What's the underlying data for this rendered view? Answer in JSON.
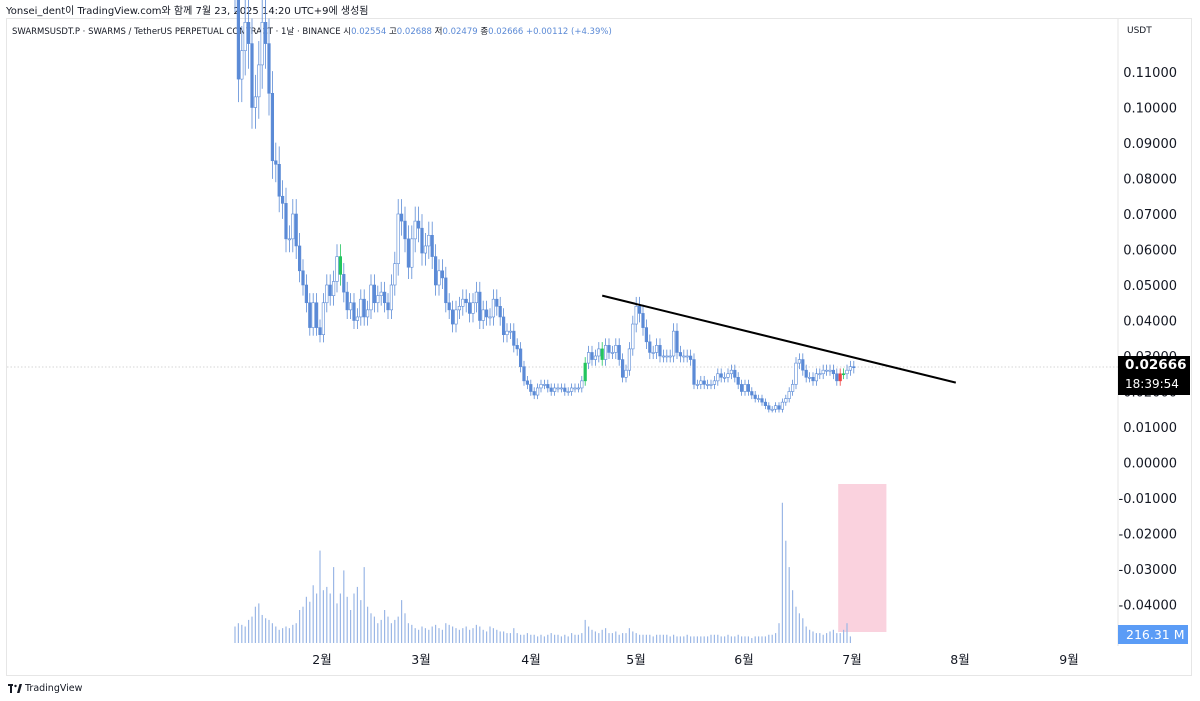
{
  "header": {
    "author_line": "Yonsei_dent이 TradingView.com와 함께 7월 23, 2025 14:20 UTC+9에 생성됨",
    "symbol_text": "SWARMSUSDT.P · SWARMS / TetherUS PERPETUAL CONTRACT · 1날 · BINANCE",
    "open_label": "시",
    "open_value": "0.02554",
    "high_label": "고",
    "high_value": "0.02688",
    "low_label": "저",
    "low_value": "0.02479",
    "close_label": "종",
    "close_value": "0.02666",
    "change_text": "+0.00112 (+4.39%)"
  },
  "axis": {
    "currency": "USDT",
    "price_badge": "0.02666",
    "countdown": "18:39:54",
    "volume_badge": "216.31 M"
  },
  "brand": {
    "name": "TradingView"
  },
  "colors": {
    "candle": "#5b8ad6",
    "candle_green": "#22c55e",
    "candle_red": "#ef4444",
    "volume": "#9bb7e6",
    "trendline": "#000000",
    "highlight": "#f9c7d6",
    "price_badge_bg": "#000000",
    "volume_badge_bg": "#5b9cf6"
  },
  "chart_data": {
    "type": "candlestick",
    "symbol": "SWARMSUSDT.P",
    "interval": "1날",
    "exchange": "BINANCE",
    "y_ticks": [
      "0.11000",
      "0.10000",
      "0.09000",
      "0.08000",
      "0.07000",
      "0.06000",
      "0.05000",
      "0.04000",
      "0.03000",
      "0.02000",
      "0.01000",
      "0.00000",
      "-0.01000",
      "-0.02000",
      "-0.03000",
      "-0.04000"
    ],
    "y_tick_values": [
      0.11,
      0.1,
      0.09,
      0.08,
      0.07,
      0.06,
      0.05,
      0.04,
      0.03,
      0.02,
      0.01,
      0.0,
      -0.01,
      -0.02,
      -0.03,
      -0.04
    ],
    "x_tick_labels": [
      "2월",
      "3월",
      "4월",
      "5월",
      "6월",
      "7월",
      "8월",
      "9월"
    ],
    "last_price": 0.02666,
    "last_price_bar_index": 212,
    "volume_last": "216.31 M",
    "closes": [
      0.135,
      0.108,
      0.116,
      0.124,
      0.118,
      0.1,
      0.103,
      0.112,
      0.124,
      0.118,
      0.104,
      0.085,
      0.084,
      0.075,
      0.073,
      0.063,
      0.063,
      0.07,
      0.061,
      0.054,
      0.05,
      0.045,
      0.038,
      0.045,
      0.038,
      0.036,
      0.045,
      0.05,
      0.047,
      0.051,
      0.058,
      0.053,
      0.048,
      0.043,
      0.045,
      0.04,
      0.041,
      0.046,
      0.041,
      0.043,
      0.05,
      0.045,
      0.047,
      0.048,
      0.045,
      0.043,
      0.05,
      0.056,
      0.07,
      0.068,
      0.063,
      0.055,
      0.063,
      0.068,
      0.066,
      0.059,
      0.061,
      0.064,
      0.058,
      0.05,
      0.054,
      0.052,
      0.045,
      0.043,
      0.039,
      0.043,
      0.044,
      0.046,
      0.045,
      0.042,
      0.045,
      0.048,
      0.04,
      0.043,
      0.041,
      0.041,
      0.046,
      0.044,
      0.041,
      0.036,
      0.037,
      0.037,
      0.033,
      0.032,
      0.027,
      0.023,
      0.022,
      0.02,
      0.019,
      0.021,
      0.022,
      0.022,
      0.021,
      0.02,
      0.021,
      0.021,
      0.021,
      0.02,
      0.02,
      0.021,
      0.021,
      0.021,
      0.023,
      0.028,
      0.031,
      0.029,
      0.03,
      0.032,
      0.029,
      0.033,
      0.031,
      0.031,
      0.033,
      0.029,
      0.024,
      0.026,
      0.032,
      0.039,
      0.044,
      0.042,
      0.038,
      0.034,
      0.031,
      0.031,
      0.033,
      0.03,
      0.03,
      0.03,
      0.03,
      0.037,
      0.031,
      0.03,
      0.03,
      0.03,
      0.029,
      0.022,
      0.022,
      0.023,
      0.022,
      0.022,
      0.022,
      0.023,
      0.025,
      0.024,
      0.024,
      0.025,
      0.026,
      0.024,
      0.022,
      0.02,
      0.022,
      0.02,
      0.019,
      0.018,
      0.018,
      0.017,
      0.016,
      0.015,
      0.015,
      0.016,
      0.015,
      0.017,
      0.018,
      0.02,
      0.022,
      0.028,
      0.029,
      0.026,
      0.024,
      0.024,
      0.023,
      0.025,
      0.025,
      0.026,
      0.026,
      0.026,
      0.025,
      0.023,
      0.025,
      0.025,
      0.026,
      0.027,
      0.0267
    ],
    "volumes": [
      0.1,
      0.12,
      0.11,
      0.1,
      0.14,
      0.16,
      0.22,
      0.24,
      0.17,
      0.15,
      0.14,
      0.12,
      0.1,
      0.08,
      0.09,
      0.1,
      0.09,
      0.11,
      0.12,
      0.2,
      0.22,
      0.28,
      0.25,
      0.35,
      0.3,
      0.56,
      0.32,
      0.34,
      0.3,
      0.46,
      0.24,
      0.3,
      0.44,
      0.28,
      0.2,
      0.3,
      0.34,
      0.26,
      0.46,
      0.22,
      0.18,
      0.16,
      0.12,
      0.14,
      0.2,
      0.16,
      0.12,
      0.14,
      0.16,
      0.26,
      0.18,
      0.12,
      0.11,
      0.09,
      0.08,
      0.1,
      0.09,
      0.08,
      0.1,
      0.11,
      0.09,
      0.08,
      0.12,
      0.11,
      0.1,
      0.09,
      0.08,
      0.09,
      0.1,
      0.08,
      0.09,
      0.11,
      0.1,
      0.08,
      0.07,
      0.1,
      0.09,
      0.08,
      0.07,
      0.07,
      0.06,
      0.06,
      0.09,
      0.06,
      0.05,
      0.05,
      0.06,
      0.05,
      0.05,
      0.04,
      0.05,
      0.04,
      0.05,
      0.06,
      0.05,
      0.05,
      0.04,
      0.05,
      0.04,
      0.06,
      0.05,
      0.05,
      0.06,
      0.14,
      0.1,
      0.08,
      0.07,
      0.06,
      0.08,
      0.09,
      0.06,
      0.06,
      0.07,
      0.05,
      0.06,
      0.06,
      0.09,
      0.07,
      0.06,
      0.05,
      0.05,
      0.05,
      0.05,
      0.04,
      0.05,
      0.05,
      0.05,
      0.05,
      0.04,
      0.05,
      0.04,
      0.04,
      0.04,
      0.05,
      0.04,
      0.04,
      0.04,
      0.04,
      0.04,
      0.04,
      0.05,
      0.05,
      0.05,
      0.04,
      0.04,
      0.05,
      0.04,
      0.04,
      0.05,
      0.04,
      0.04,
      0.04,
      0.03,
      0.04,
      0.04,
      0.04,
      0.04,
      0.05,
      0.05,
      0.06,
      0.12,
      0.85,
      0.62,
      0.46,
      0.32,
      0.22,
      0.18,
      0.15,
      0.1,
      0.08,
      0.07,
      0.06,
      0.06,
      0.05,
      0.06,
      0.07,
      0.08,
      0.06,
      0.06,
      0.08,
      0.12,
      0.04
    ],
    "trendline": {
      "from": {
        "bar": 108,
        "price": 0.047
      },
      "to": {
        "bar": 212,
        "price": 0.0225
      }
    },
    "volume_highlight": {
      "from_bar": 178,
      "to_bar": 191
    }
  }
}
